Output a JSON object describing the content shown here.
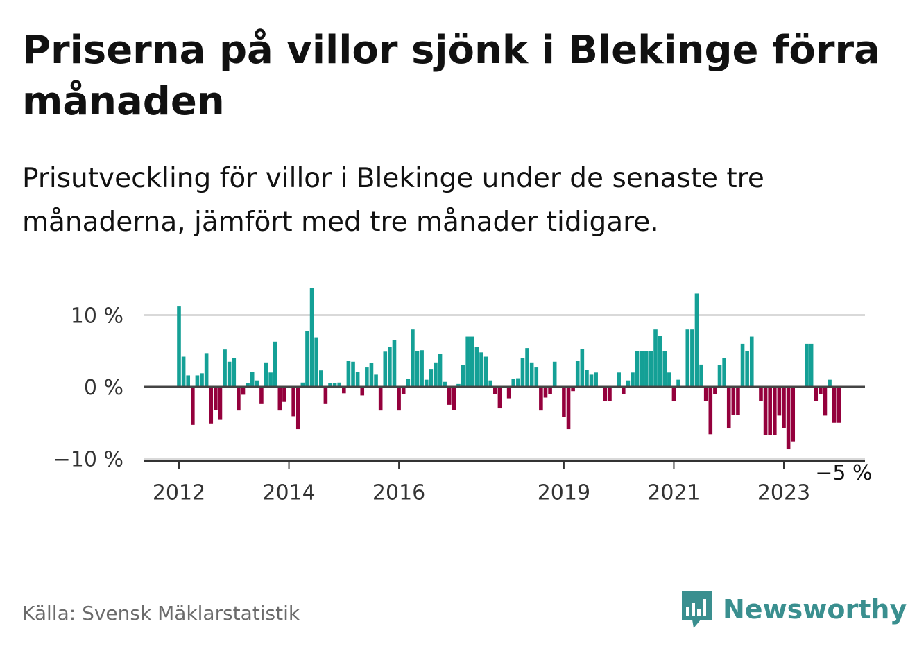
{
  "title": "Priserna på villor sjönk i Blekinge förra månaden",
  "subtitle": "Prisutveckling för villor i Blekinge under de senaste tre månaderna, jämfört med tre månader tidigare.",
  "source": "Källa: Svensk Mäklarstatistik",
  "brand": {
    "name": "Newsworthy",
    "icon": "newsworthy-logo-icon",
    "color": "#3a8f8f"
  },
  "colors": {
    "positive": "#14a096",
    "negative": "#94003c",
    "grid": "#d9d9d9",
    "zero_line": "#444444"
  },
  "chart_data": {
    "type": "bar",
    "x_start": "2012-01",
    "x_end": "2024-01",
    "ylim": [
      -10,
      14
    ],
    "yticks": [
      {
        "value": 10,
        "label": "10 %"
      },
      {
        "value": 0,
        "label": "0 %"
      },
      {
        "value": -10,
        "label": "−10 %"
      }
    ],
    "xticks": [
      {
        "date": "2012-01",
        "label": "2012"
      },
      {
        "date": "2014-01",
        "label": "2014"
      },
      {
        "date": "2016-01",
        "label": "2016"
      },
      {
        "date": "2019-01",
        "label": "2019"
      },
      {
        "date": "2021-01",
        "label": "2021"
      },
      {
        "date": "2023-01",
        "label": "2023"
      }
    ],
    "grid": true,
    "end_label": "−5 %",
    "values": [
      11.2,
      4.2,
      1.6,
      -5.3,
      1.6,
      1.9,
      4.7,
      -5.1,
      -3.2,
      -4.6,
      5.2,
      3.5,
      4.0,
      -3.3,
      -1.1,
      0.5,
      2.1,
      0.9,
      -2.4,
      3.4,
      2.0,
      6.3,
      -3.3,
      -2.1,
      0.0,
      -4.1,
      -5.9,
      0.6,
      7.8,
      13.8,
      6.9,
      2.3,
      -2.4,
      0.5,
      0.5,
      0.6,
      -0.9,
      3.6,
      3.5,
      2.1,
      -1.2,
      2.7,
      3.3,
      1.7,
      -3.3,
      4.9,
      5.6,
      6.5,
      -3.3,
      -1.0,
      1.1,
      8.0,
      5.0,
      5.1,
      1.0,
      2.5,
      3.4,
      4.6,
      0.7,
      -2.5,
      -3.2,
      0.4,
      3.0,
      7.0,
      7.0,
      5.6,
      4.8,
      4.2,
      0.9,
      -1.0,
      -3.0,
      0.0,
      -1.6,
      1.1,
      1.2,
      4.0,
      5.4,
      3.4,
      2.7,
      -3.3,
      -1.5,
      -1.0,
      3.5,
      0.0,
      -4.2,
      -5.9,
      -0.6,
      3.6,
      5.3,
      2.4,
      1.7,
      2.0,
      0.0,
      -2.0,
      -2.0,
      0.0,
      2.0,
      -1.0,
      0.9,
      2.0,
      5.0,
      5.0,
      5.0,
      5.0,
      8.0,
      7.1,
      5.0,
      2.0,
      -2.0,
      1.0,
      0.0,
      8.0,
      8.0,
      13.0,
      3.1,
      -2.0,
      -6.6,
      -1.0,
      3.0,
      4.0,
      -5.8,
      -3.9,
      -3.9,
      6.0,
      5.0,
      7.0,
      0.0,
      -2.0,
      -6.7,
      -6.7,
      -6.7,
      -4.0,
      -5.7,
      -8.7,
      -7.6,
      0.0,
      0.0,
      6.0,
      6.0,
      -2.0,
      -1.0,
      -4.0,
      1.0,
      -5.0,
      -5.0
    ]
  }
}
